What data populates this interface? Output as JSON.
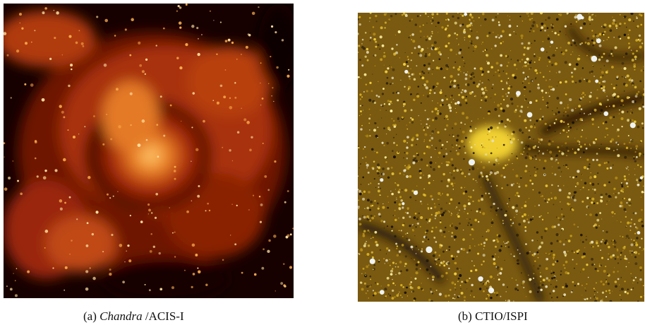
{
  "panels": [
    {
      "label": "(a)",
      "caption_italic": "Chandra",
      "caption_rest": "/ACIS-I"
    },
    {
      "label": "(b)",
      "caption": "CTIO/ISPI"
    }
  ]
}
